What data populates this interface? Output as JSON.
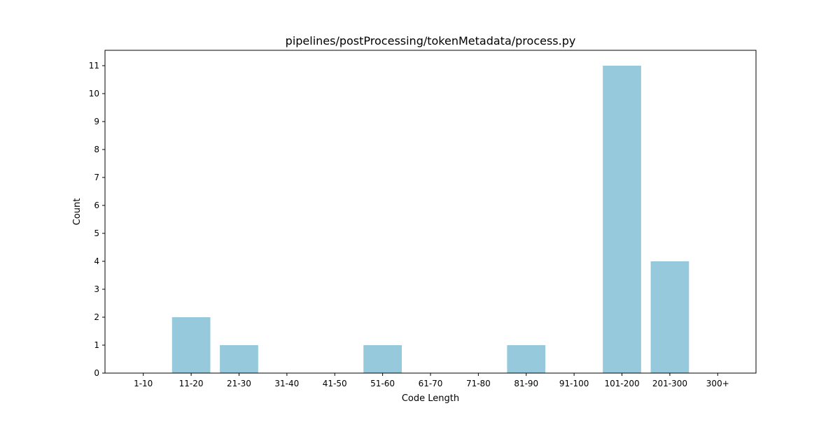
{
  "chart_data": {
    "type": "bar",
    "title": "pipelines/postProcessing/tokenMetadata/process.py",
    "xlabel": "Code Length",
    "ylabel": "Count",
    "categories": [
      "1-10",
      "11-20",
      "21-30",
      "31-40",
      "41-50",
      "51-60",
      "61-70",
      "71-80",
      "81-90",
      "91-100",
      "101-200",
      "201-300",
      "300+"
    ],
    "values": [
      0,
      2,
      1,
      0,
      0,
      1,
      0,
      0,
      1,
      0,
      11,
      4,
      0
    ],
    "ylim": [
      0,
      11.55
    ],
    "yticks": [
      0,
      1,
      2,
      3,
      4,
      5,
      6,
      7,
      8,
      9,
      10,
      11
    ],
    "bar_color": "#96c9dc",
    "grid": false,
    "legend": "none"
  }
}
